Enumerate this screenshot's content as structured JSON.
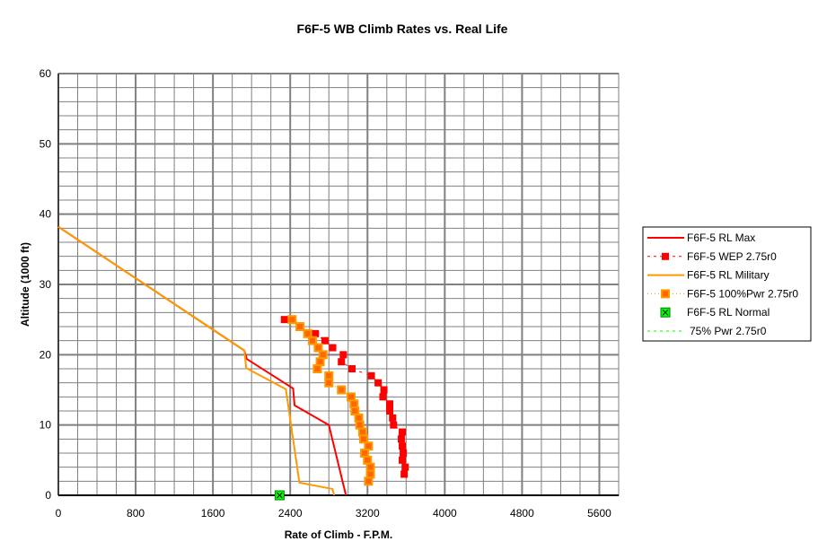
{
  "chart_data": {
    "type": "line",
    "title": "F6F-5 WB Climb Rates vs. Real Life",
    "xlabel": "Rate of Climb - F.P.M.",
    "ylabel": "Altitude (1000 ft)",
    "xlim": [
      0,
      5800
    ],
    "ylim": [
      0,
      60
    ],
    "xticks": [
      0,
      800,
      1600,
      2400,
      3200,
      4000,
      4800,
      5600
    ],
    "yticks": [
      0,
      10,
      20,
      30,
      40,
      50,
      60
    ],
    "grid": true,
    "legend_position": "right",
    "series": [
      {
        "name": "F6F-5 RL Max",
        "style": "solid",
        "color": "#ff0000",
        "points": [
          [
            0,
            38.2
          ],
          [
            1925,
            20.6
          ],
          [
            1950,
            19.4
          ],
          [
            2430,
            15.2
          ],
          [
            2445,
            12.8
          ],
          [
            2800,
            10.0
          ],
          [
            2977,
            0
          ]
        ]
      },
      {
        "name": "F6F-5 WEP 2.75r0",
        "style": "dashed-square",
        "color": "#ff0000",
        "points": [
          [
            2340,
            25
          ],
          [
            2510,
            24
          ],
          [
            2660,
            23
          ],
          [
            2760,
            22
          ],
          [
            2840,
            21
          ],
          [
            2950,
            20
          ],
          [
            2930,
            19
          ],
          [
            3040,
            18
          ],
          [
            3240,
            17
          ],
          [
            3310,
            16
          ],
          [
            3370,
            15
          ],
          [
            3360,
            14
          ],
          [
            3430,
            13
          ],
          [
            3430,
            12
          ],
          [
            3460,
            11
          ],
          [
            3470,
            10
          ],
          [
            3560,
            9
          ],
          [
            3550,
            8
          ],
          [
            3560,
            7
          ],
          [
            3570,
            6
          ],
          [
            3560,
            5
          ],
          [
            3590,
            4
          ],
          [
            3580,
            3
          ]
        ]
      },
      {
        "name": "F6F-5 RL Military",
        "style": "solid",
        "color": "#ff9900",
        "points": [
          [
            0,
            38.2
          ],
          [
            1925,
            20.6
          ],
          [
            1945,
            18.1
          ],
          [
            2355,
            15.1
          ],
          [
            2495,
            1.8
          ],
          [
            2837,
            0.9
          ],
          [
            2855,
            0
          ]
        ]
      },
      {
        "name": "F6F-5 100%Pwr 2.75r0",
        "style": "dotted-square",
        "color": "#ff9900",
        "points": [
          [
            2420,
            25
          ],
          [
            2500,
            24
          ],
          [
            2580,
            23
          ],
          [
            2630,
            22
          ],
          [
            2690,
            21
          ],
          [
            2740,
            20
          ],
          [
            2710,
            19
          ],
          [
            2680,
            18
          ],
          [
            2800,
            17
          ],
          [
            2800,
            16
          ],
          [
            2930,
            15
          ],
          [
            3030,
            14
          ],
          [
            3060,
            13
          ],
          [
            3070,
            12
          ],
          [
            3110,
            11
          ],
          [
            3120,
            10
          ],
          [
            3150,
            9
          ],
          [
            3160,
            8
          ],
          [
            3210,
            7
          ],
          [
            3170,
            6
          ],
          [
            3200,
            5
          ],
          [
            3230,
            4
          ],
          [
            3230,
            3
          ],
          [
            3210,
            2
          ]
        ]
      },
      {
        "name": "F6F-5 RL Normal",
        "style": "marker-x",
        "color": "#00ff00",
        "points": [
          [
            2290,
            0
          ]
        ]
      },
      {
        "name": "75% Pwr 2.75r0",
        "style": "dashed",
        "color": "#00ff00",
        "points": []
      }
    ]
  }
}
